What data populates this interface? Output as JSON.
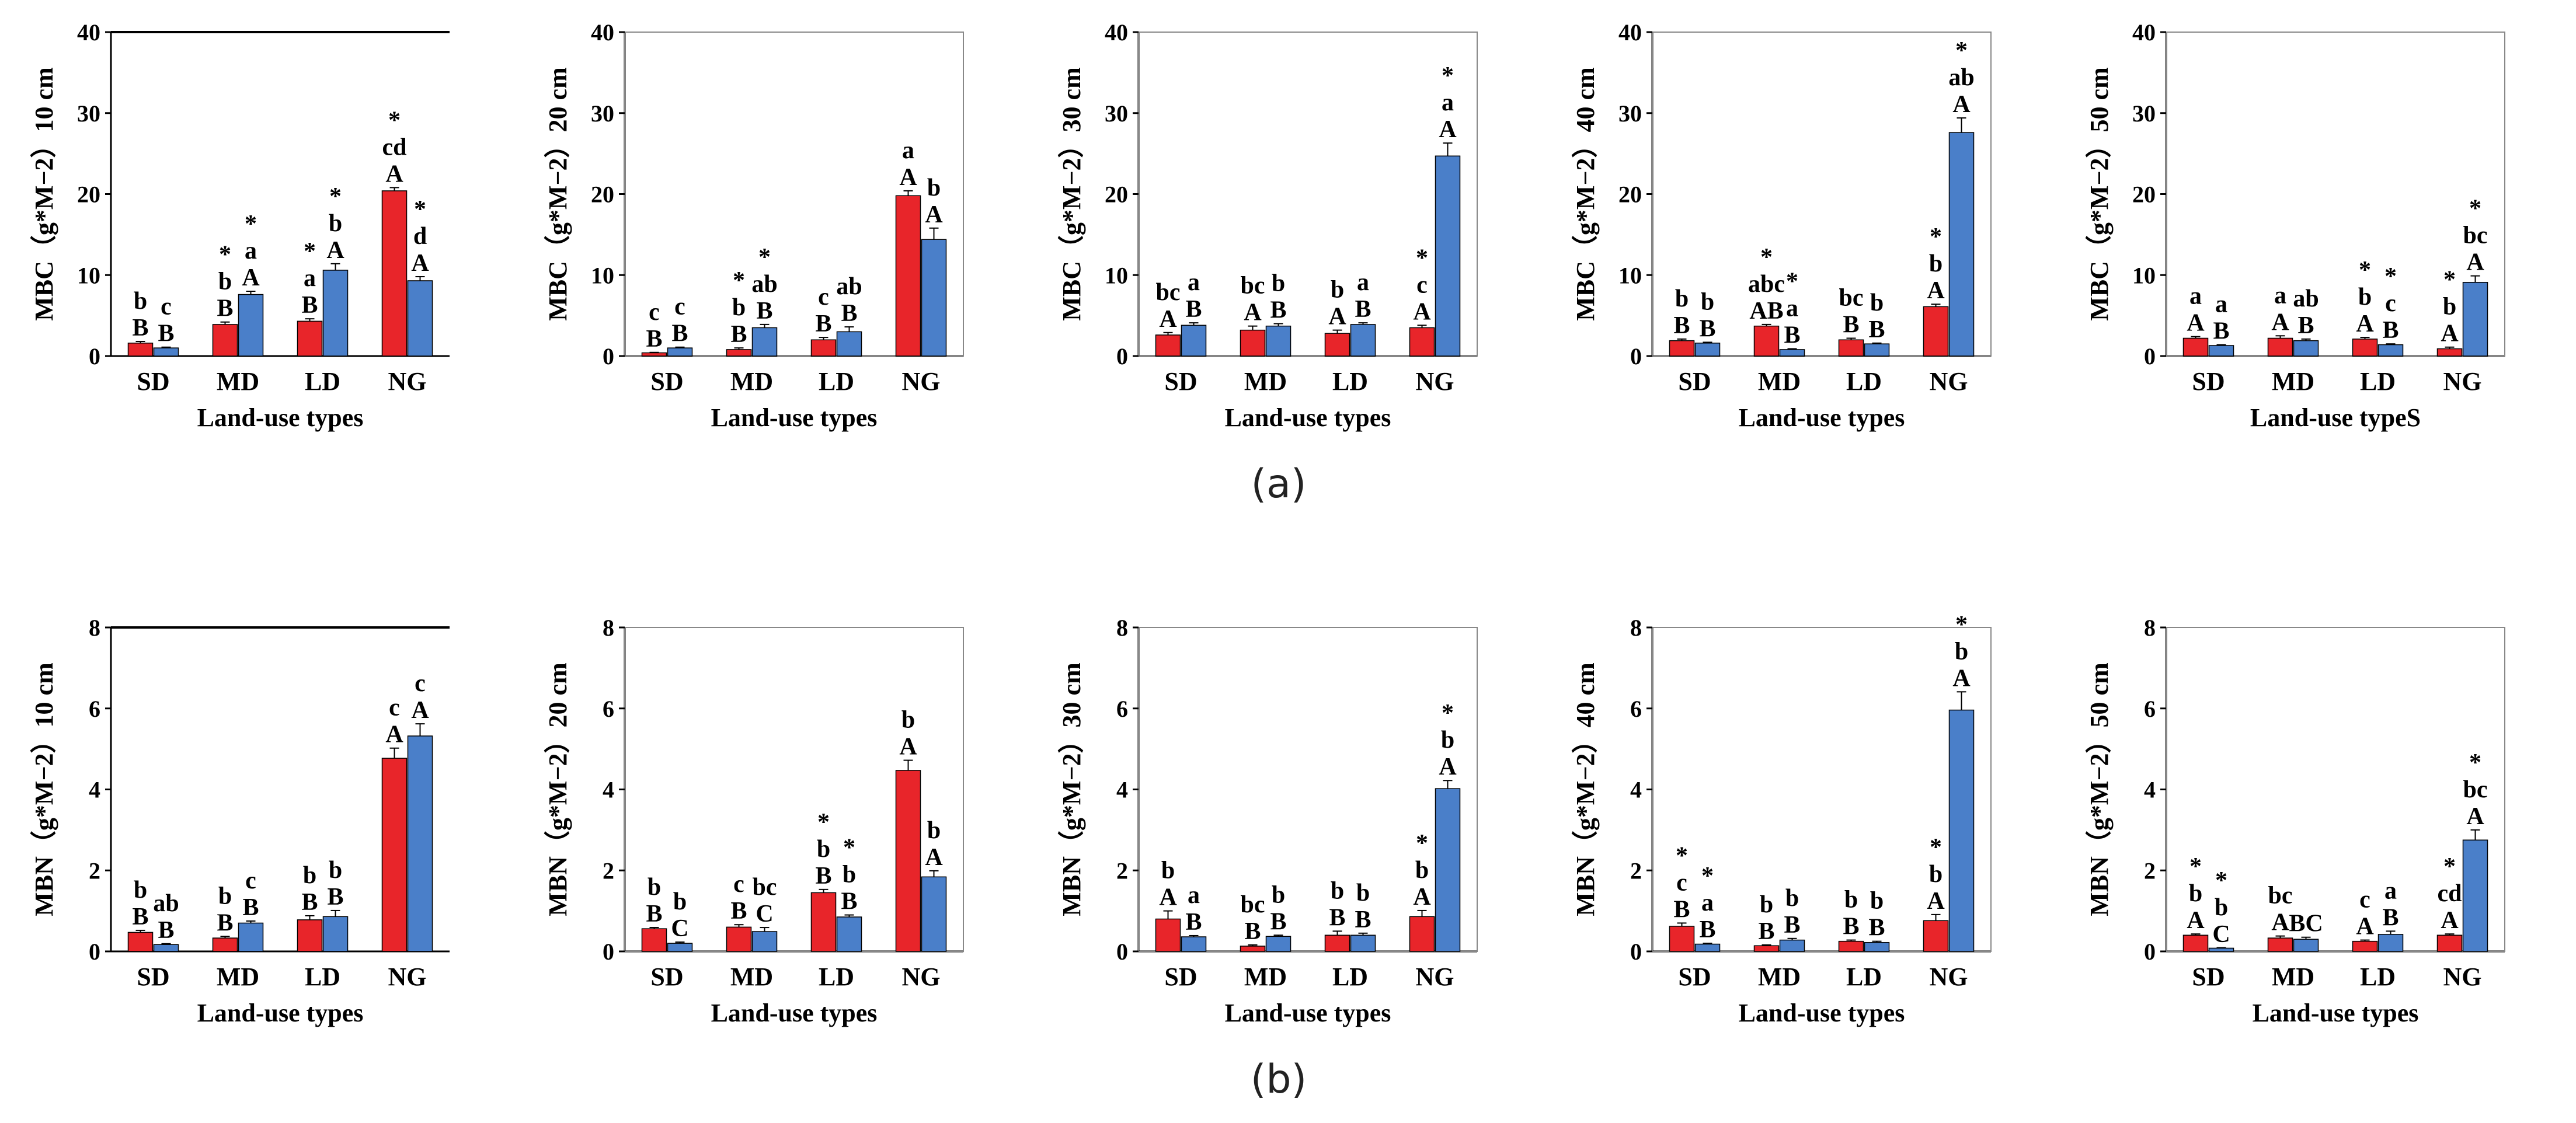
{
  "captions": {
    "a": "(a)",
    "b": "(b)"
  },
  "series_colors": [
    "#e8252a",
    "#4a7fc9"
  ],
  "chart_data": [
    {
      "id": "mbc-10",
      "type": "bar",
      "row": "a",
      "ylabel": "MBC（g*M−2）10 cm",
      "xlabel": "Land-use types",
      "categories": [
        "SD",
        "MD",
        "LD",
        "NG"
      ],
      "ylim": [
        0,
        40
      ],
      "yticks": [
        0,
        10,
        20,
        30,
        40
      ],
      "top_border": true,
      "series": [
        {
          "name": "series 1",
          "values": [
            1.6,
            3.9,
            4.3,
            20.4
          ],
          "errors": [
            0.2,
            0.3,
            0.3,
            0.4
          ],
          "labels": [
            [
              "B",
              "b"
            ],
            [
              "B",
              "b",
              "*"
            ],
            [
              "B",
              "a",
              "*"
            ],
            [
              "A",
              "cd",
              "*"
            ]
          ]
        },
        {
          "name": "series 2",
          "values": [
            1.0,
            7.6,
            10.6,
            9.3
          ],
          "errors": [
            0.1,
            0.4,
            0.8,
            0.5
          ],
          "labels": [
            [
              "B",
              "c"
            ],
            [
              "A",
              "a",
              "*"
            ],
            [
              "A",
              "b",
              "*"
            ],
            [
              "A",
              "d",
              "*"
            ]
          ]
        }
      ]
    },
    {
      "id": "mbc-20",
      "type": "bar",
      "row": "a",
      "ylabel": "MBC（g*M−2）20 cm",
      "xlabel": "Land-use types",
      "categories": [
        "SD",
        "MD",
        "LD",
        "NG"
      ],
      "ylim": [
        0,
        40
      ],
      "yticks": [
        0,
        10,
        20,
        30,
        40
      ],
      "top_border": false,
      "series": [
        {
          "name": "series 1",
          "values": [
            0.4,
            0.8,
            2.0,
            19.8
          ],
          "errors": [
            0.05,
            0.2,
            0.3,
            0.6
          ],
          "labels": [
            [
              "B",
              "c"
            ],
            [
              "B",
              "b",
              "*"
            ],
            [
              "B",
              "c"
            ],
            [
              "A",
              "a"
            ]
          ]
        },
        {
          "name": "series 2",
          "values": [
            1.0,
            3.5,
            3.0,
            14.4
          ],
          "errors": [
            0.1,
            0.4,
            0.6,
            1.4
          ],
          "labels": [
            [
              "B",
              "c"
            ],
            [
              "B",
              "ab",
              "*"
            ],
            [
              "B",
              "ab"
            ],
            [
              "A",
              "b"
            ]
          ]
        }
      ]
    },
    {
      "id": "mbc-30",
      "type": "bar",
      "row": "a",
      "ylabel": "MBC（g*M−2）30 cm",
      "xlabel": "Land-use types",
      "categories": [
        "SD",
        "MD",
        "LD",
        "NG"
      ],
      "ylim": [
        0,
        40
      ],
      "yticks": [
        0,
        10,
        20,
        30,
        40
      ],
      "top_border": false,
      "series": [
        {
          "name": "series 1",
          "values": [
            2.6,
            3.2,
            2.8,
            3.5
          ],
          "errors": [
            0.3,
            0.5,
            0.4,
            0.3
          ],
          "labels": [
            [
              "A",
              "bc"
            ],
            [
              "A",
              "bc"
            ],
            [
              "A",
              "b"
            ],
            [
              "A",
              "c",
              "*"
            ]
          ]
        },
        {
          "name": "series 2",
          "values": [
            3.8,
            3.7,
            3.9,
            24.7
          ],
          "errors": [
            0.3,
            0.3,
            0.2,
            1.6
          ],
          "labels": [
            [
              "B",
              "a"
            ],
            [
              "B",
              "b"
            ],
            [
              "B",
              "a"
            ],
            [
              "A",
              "a",
              "*"
            ]
          ]
        }
      ]
    },
    {
      "id": "mbc-40",
      "type": "bar",
      "row": "a",
      "ylabel": "MBC（g*M−2）40 cm",
      "xlabel": "Land-use types",
      "categories": [
        "SD",
        "MD",
        "LD",
        "NG"
      ],
      "ylim": [
        0,
        40
      ],
      "yticks": [
        0,
        10,
        20,
        30,
        40
      ],
      "top_border": false,
      "series": [
        {
          "name": "series 1",
          "values": [
            1.9,
            3.7,
            2.0,
            6.1
          ],
          "errors": [
            0.2,
            0.2,
            0.2,
            0.3
          ],
          "labels": [
            [
              "B",
              "b"
            ],
            [
              "AB",
              "abc",
              "*"
            ],
            [
              "B",
              "bc"
            ],
            [
              "A",
              "b",
              "*"
            ]
          ]
        },
        {
          "name": "series 2",
          "values": [
            1.6,
            0.8,
            1.5,
            27.6
          ],
          "errors": [
            0.1,
            0.1,
            0.1,
            1.8
          ],
          "labels": [
            [
              "B",
              "b"
            ],
            [
              "B",
              "a",
              "*"
            ],
            [
              "B",
              "b"
            ],
            [
              "A",
              "ab",
              "*"
            ]
          ]
        }
      ]
    },
    {
      "id": "mbc-50",
      "type": "bar",
      "row": "a",
      "ylabel": "MBC（g*M−2）50 cm",
      "xlabel": "Land-use typeS",
      "categories": [
        "SD",
        "MD",
        "LD",
        "NG"
      ],
      "ylim": [
        0,
        40
      ],
      "yticks": [
        0,
        10,
        20,
        30,
        40
      ],
      "top_border": false,
      "series": [
        {
          "name": "series 1",
          "values": [
            2.2,
            2.2,
            2.1,
            0.9
          ],
          "errors": [
            0.2,
            0.3,
            0.2,
            0.2
          ],
          "labels": [
            [
              "A",
              "a"
            ],
            [
              "A",
              "a"
            ],
            [
              "A",
              "b",
              "*"
            ],
            [
              "A",
              "b",
              "*"
            ]
          ]
        },
        {
          "name": "series 2",
          "values": [
            1.3,
            1.9,
            1.4,
            9.1
          ],
          "errors": [
            0.1,
            0.2,
            0.1,
            0.8
          ],
          "labels": [
            [
              "B",
              "a"
            ],
            [
              "B",
              "ab"
            ],
            [
              "B",
              "c",
              "*"
            ],
            [
              "A",
              "bc",
              "*"
            ]
          ]
        }
      ]
    },
    {
      "id": "mbn-10",
      "type": "bar",
      "row": "b",
      "ylabel": "MBN（g*M−2）10 cm",
      "xlabel": "Land-use types",
      "categories": [
        "SD",
        "MD",
        "LD",
        "NG"
      ],
      "ylim": [
        0,
        8
      ],
      "yticks": [
        0,
        2,
        4,
        6,
        8
      ],
      "top_border": true,
      "series": [
        {
          "name": "series 1",
          "values": [
            0.47,
            0.33,
            0.78,
            4.77
          ],
          "errors": [
            0.05,
            0.04,
            0.1,
            0.25
          ],
          "labels": [
            [
              "B",
              "b"
            ],
            [
              "B",
              "b"
            ],
            [
              "B",
              "b"
            ],
            [
              "A",
              "c"
            ]
          ]
        },
        {
          "name": "series 2",
          "values": [
            0.17,
            0.7,
            0.86,
            5.32
          ],
          "errors": [
            0.02,
            0.05,
            0.15,
            0.3
          ],
          "labels": [
            [
              "B",
              "ab"
            ],
            [
              "B",
              "c"
            ],
            [
              "B",
              "b"
            ],
            [
              "A",
              "c"
            ]
          ]
        }
      ]
    },
    {
      "id": "mbn-20",
      "type": "bar",
      "row": "b",
      "ylabel": "MBN（g*M−2）20 cm",
      "xlabel": "Land-use types",
      "categories": [
        "SD",
        "MD",
        "LD",
        "NG"
      ],
      "ylim": [
        0,
        8
      ],
      "yticks": [
        0,
        2,
        4,
        6,
        8
      ],
      "top_border": false,
      "series": [
        {
          "name": "series 1",
          "values": [
            0.56,
            0.6,
            1.45,
            4.47
          ],
          "errors": [
            0.03,
            0.06,
            0.08,
            0.25
          ],
          "labels": [
            [
              "B",
              "b"
            ],
            [
              "B",
              "c"
            ],
            [
              "B",
              "b",
              "*"
            ],
            [
              "A",
              "b"
            ]
          ]
        },
        {
          "name": "series 2",
          "values": [
            0.2,
            0.49,
            0.85,
            1.84
          ],
          "errors": [
            0.03,
            0.1,
            0.05,
            0.15
          ],
          "labels": [
            [
              "C",
              "b"
            ],
            [
              "C",
              "bc"
            ],
            [
              "B",
              "b",
              "*"
            ],
            [
              "A",
              "b"
            ]
          ]
        }
      ]
    },
    {
      "id": "mbn-30",
      "type": "bar",
      "row": "b",
      "ylabel": "MBN（g*M−2）30 cm",
      "xlabel": "Land-use types",
      "categories": [
        "SD",
        "MD",
        "LD",
        "NG"
      ],
      "ylim": [
        0,
        8
      ],
      "yticks": [
        0,
        2,
        4,
        6,
        8
      ],
      "top_border": false,
      "series": [
        {
          "name": "series 1",
          "values": [
            0.8,
            0.13,
            0.4,
            0.86
          ],
          "errors": [
            0.2,
            0.03,
            0.1,
            0.15
          ],
          "labels": [
            [
              "A",
              "b"
            ],
            [
              "B",
              "bc"
            ],
            [
              "B",
              "b"
            ],
            [
              "A",
              "b",
              "*"
            ]
          ]
        },
        {
          "name": "series 2",
          "values": [
            0.36,
            0.37,
            0.4,
            4.02
          ],
          "errors": [
            0.03,
            0.03,
            0.05,
            0.2
          ],
          "labels": [
            [
              "B",
              "a"
            ],
            [
              "B",
              "b"
            ],
            [
              "B",
              "b"
            ],
            [
              "A",
              "b",
              "*"
            ]
          ]
        }
      ]
    },
    {
      "id": "mbn-40",
      "type": "bar",
      "row": "b",
      "ylabel": "MBN（g*M−2）40 cm",
      "xlabel": "Land-use types",
      "categories": [
        "SD",
        "MD",
        "LD",
        "NG"
      ],
      "ylim": [
        0,
        8
      ],
      "yticks": [
        0,
        2,
        4,
        6,
        8
      ],
      "top_border": false,
      "series": [
        {
          "name": "series 1",
          "values": [
            0.62,
            0.14,
            0.25,
            0.76
          ],
          "errors": [
            0.08,
            0.02,
            0.03,
            0.15
          ],
          "labels": [
            [
              "B",
              "c",
              "*"
            ],
            [
              "B",
              "b"
            ],
            [
              "B",
              "b"
            ],
            [
              "A",
              "b",
              "*"
            ]
          ]
        },
        {
          "name": "series 2",
          "values": [
            0.18,
            0.28,
            0.22,
            5.96
          ],
          "errors": [
            0.02,
            0.04,
            0.03,
            0.45
          ],
          "labels": [
            [
              "B",
              "a",
              "*"
            ],
            [
              "B",
              "b"
            ],
            [
              "B",
              "b"
            ],
            [
              "A",
              "b",
              "*"
            ]
          ]
        }
      ]
    },
    {
      "id": "mbn-50",
      "type": "bar",
      "row": "b",
      "ylabel": "MBN（g*M−2）50 cm",
      "xlabel": "Land-use types",
      "categories": [
        "SD",
        "MD",
        "LD",
        "NG"
      ],
      "ylim": [
        0,
        8
      ],
      "yticks": [
        0,
        2,
        4,
        6,
        8
      ],
      "top_border": false,
      "series": [
        {
          "name": "series 1",
          "values": [
            0.4,
            0.33,
            0.25,
            0.4
          ],
          "errors": [
            0.03,
            0.05,
            0.03,
            0.03
          ],
          "labels": [
            [
              "A",
              "b",
              "*"
            ],
            [
              "A",
              "bc"
            ],
            [
              "A",
              "c"
            ],
            [
              "A",
              "cd",
              "*"
            ]
          ]
        },
        {
          "name": "series 2",
          "values": [
            0.08,
            0.3,
            0.42,
            2.75
          ],
          "errors": [
            0.01,
            0.05,
            0.08,
            0.25
          ],
          "labels": [
            [
              "C",
              "b",
              "*"
            ],
            [
              "BC",
              ""
            ],
            [
              "B",
              "a"
            ],
            [
              "A",
              "bc",
              "*"
            ]
          ]
        }
      ]
    }
  ]
}
